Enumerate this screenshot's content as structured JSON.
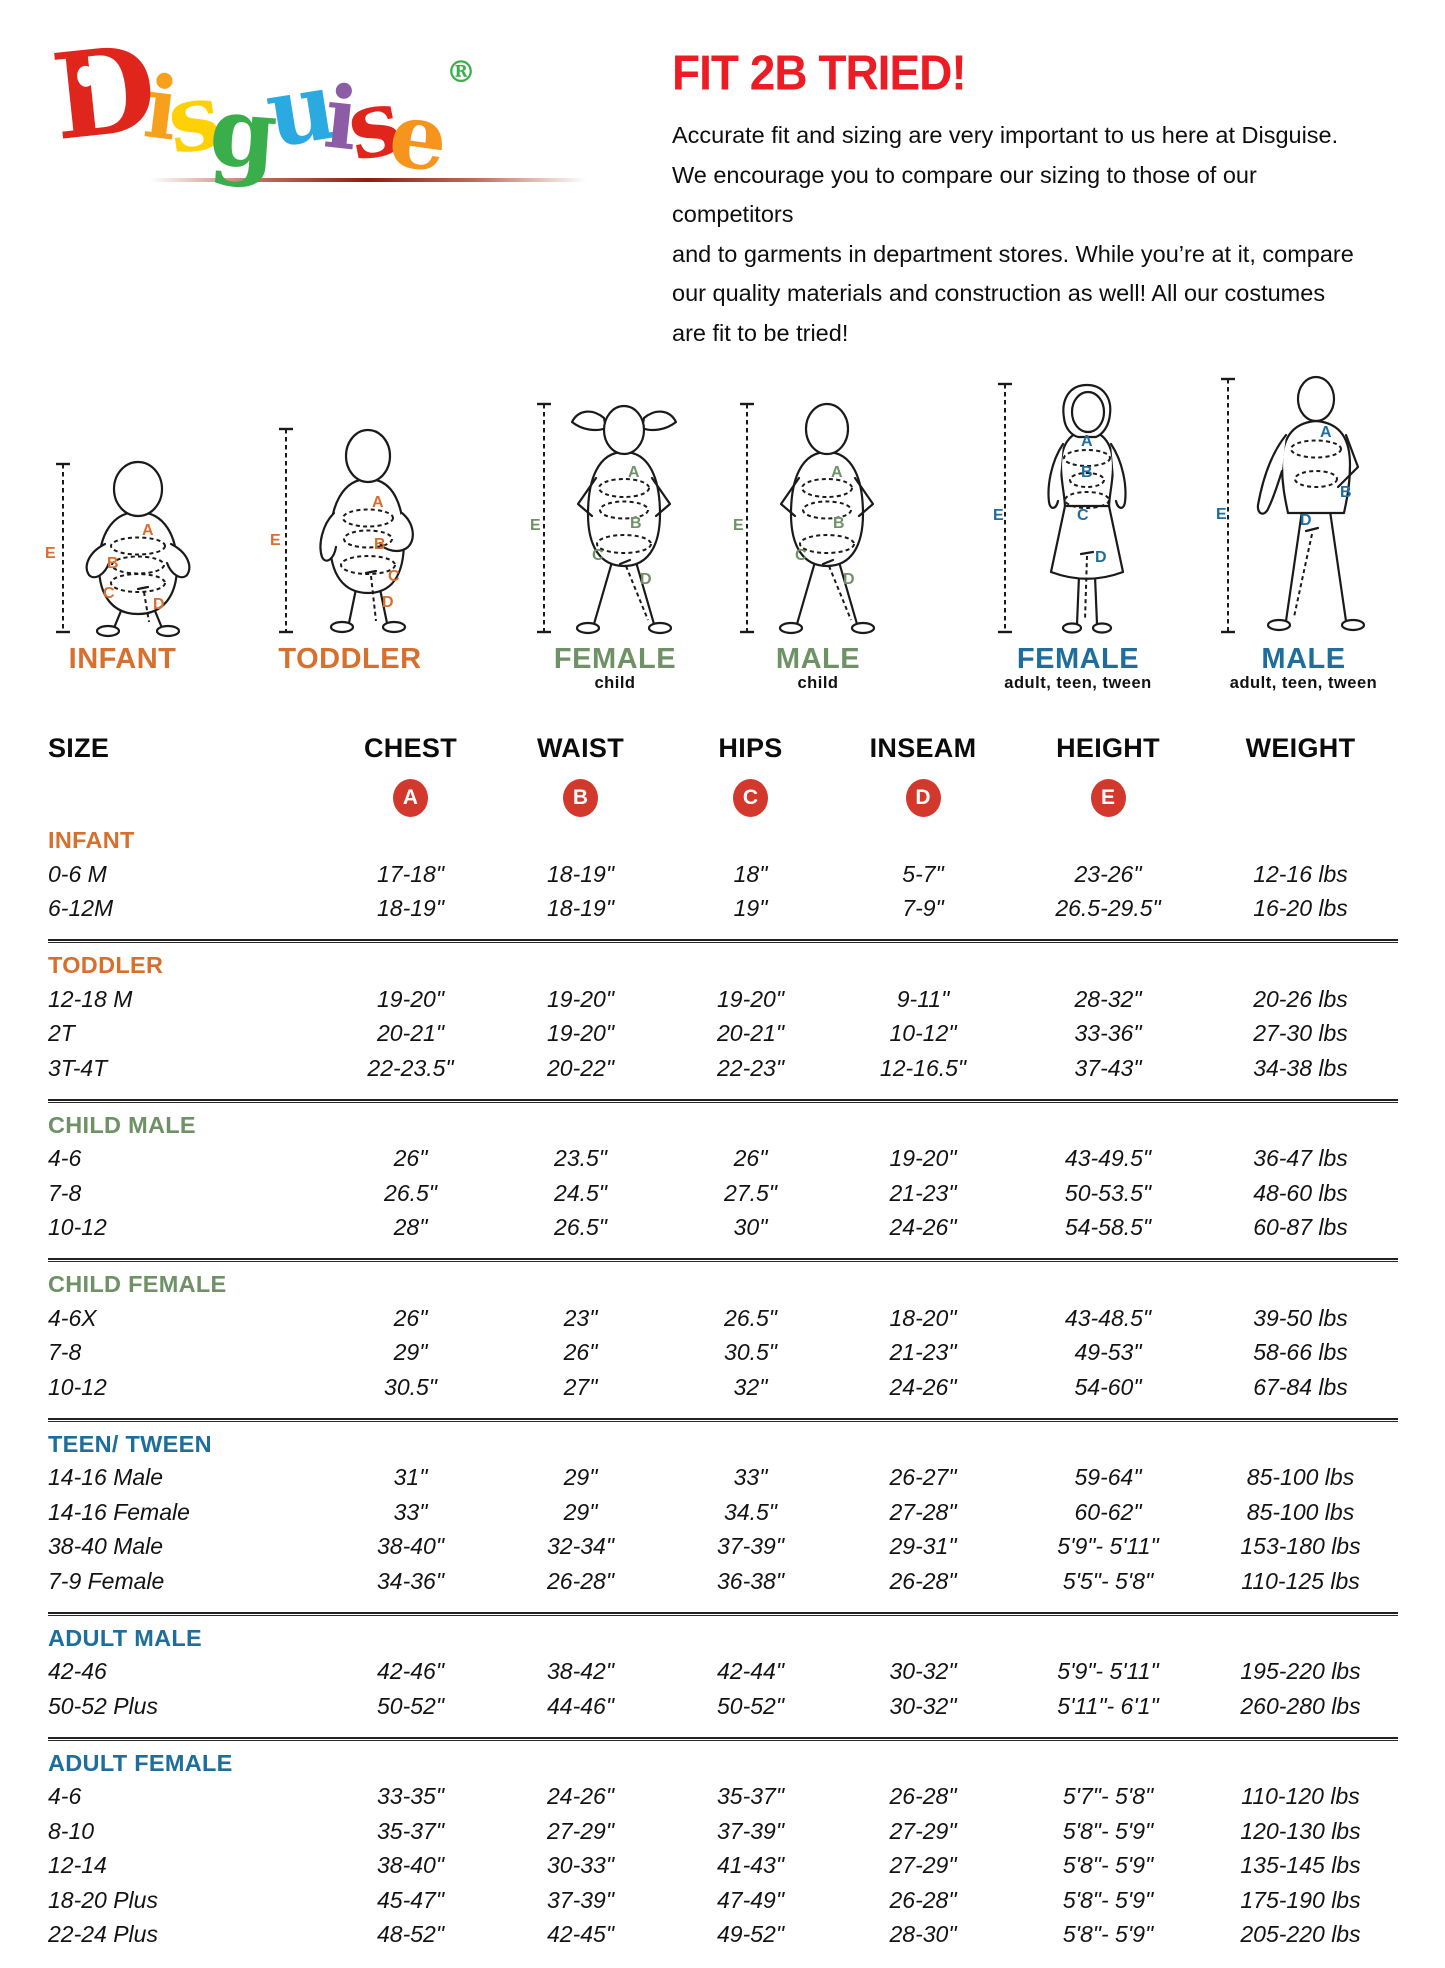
{
  "header": {
    "logo_letters": [
      {
        "ch": "D",
        "color": "#E0251C"
      },
      {
        "ch": "i",
        "color": "#F6A01B"
      },
      {
        "ch": "s",
        "color": "#FFD105"
      },
      {
        "ch": "g",
        "color": "#3BAE4C"
      },
      {
        "ch": "u",
        "color": "#2BAAE2"
      },
      {
        "ch": "i",
        "color": "#8D5CA7"
      },
      {
        "ch": "s",
        "color": "#E0251C"
      },
      {
        "ch": "e",
        "color": "#F7941E"
      }
    ],
    "registered_mark": "®",
    "registered_color": "#3BAE4C",
    "heading": "FIT 2B TRIED!",
    "heading_color": "#EC1C24",
    "paragraph_lines": [
      "Accurate fit and sizing are very important to us here at Disguise.",
      "We encourage you to compare our sizing to those of our competitors",
      "and to garments in department stores. While you’re at it, compare",
      "our quality materials and construction as well! All our costumes",
      "are fit to be tried!"
    ]
  },
  "figures": [
    {
      "label": "INFANT",
      "sublabel": "",
      "color": "#D76F2D",
      "letters": {
        "chest": "A",
        "waist": "B",
        "hips": "C",
        "inseam": "D",
        "height": "E"
      }
    },
    {
      "label": "TODDLER",
      "sublabel": "",
      "color": "#D76F2D",
      "letters": {
        "chest": "A",
        "waist": "B",
        "hips": "C",
        "inseam": "D",
        "height": "E"
      }
    },
    {
      "label": "FEMALE",
      "sublabel": "child",
      "color": "#6E9266",
      "letters": {
        "chest": "A",
        "waist": "B",
        "hips": "C",
        "inseam": "D",
        "height": "E"
      }
    },
    {
      "label": "MALE",
      "sublabel": "child",
      "color": "#6E9266",
      "letters": {
        "chest": "A",
        "waist": "B",
        "hips": "C",
        "inseam": "D",
        "height": "E"
      }
    },
    {
      "label": "FEMALE",
      "sublabel": "adult, teen, tween",
      "color": "#1E6E9D",
      "letters": {
        "chest": "A",
        "waist": "B",
        "hips": "C",
        "inseam": "D",
        "height": "E"
      }
    },
    {
      "label": "MALE",
      "sublabel": "adult, teen, tween",
      "color": "#1E6E9D",
      "letters": {
        "chest": "A",
        "waist": "B",
        "inseam": "D",
        "height": "E"
      }
    }
  ],
  "table": {
    "columns": [
      "SIZE",
      "CHEST",
      "WAIST",
      "HIPS",
      "INSEAM",
      "HEIGHT",
      "WEIGHT"
    ],
    "badges": [
      "A",
      "B",
      "C",
      "D",
      "E"
    ],
    "badge_color": "#D2382C",
    "sections": [
      {
        "name": "INFANT",
        "color": "#D76F2D",
        "rows": [
          [
            "0-6 M",
            "17-18\"",
            "18-19\"",
            "18\"",
            "5-7\"",
            "23-26\"",
            "12-16 lbs"
          ],
          [
            "6-12M",
            "18-19\"",
            "18-19\"",
            "19\"",
            "7-9\"",
            "26.5-29.5\"",
            "16-20 lbs"
          ]
        ]
      },
      {
        "name": "TODDLER",
        "color": "#D76F2D",
        "rows": [
          [
            "12-18 M",
            "19-20\"",
            "19-20\"",
            "19-20\"",
            "9-11\"",
            "28-32\"",
            "20-26 lbs"
          ],
          [
            "2T",
            "20-21\"",
            "19-20\"",
            "20-21\"",
            "10-12\"",
            "33-36\"",
            "27-30 lbs"
          ],
          [
            "3T-4T",
            "22-23.5\"",
            "20-22\"",
            "22-23\"",
            "12-16.5\"",
            "37-43\"",
            "34-38 lbs"
          ]
        ]
      },
      {
        "name": "CHILD MALE",
        "color": "#6E9266",
        "rows": [
          [
            "4-6",
            "26\"",
            "23.5\"",
            "26\"",
            "19-20\"",
            "43-49.5\"",
            "36-47 lbs"
          ],
          [
            "7-8",
            "26.5\"",
            "24.5\"",
            "27.5\"",
            "21-23\"",
            "50-53.5\"",
            "48-60 lbs"
          ],
          [
            "10-12",
            "28\"",
            "26.5\"",
            "30\"",
            "24-26\"",
            "54-58.5\"",
            "60-87 lbs"
          ]
        ]
      },
      {
        "name": "CHILD FEMALE",
        "color": "#6E9266",
        "rows": [
          [
            "4-6X",
            "26\"",
            "23\"",
            "26.5\"",
            "18-20\"",
            "43-48.5\"",
            "39-50 lbs"
          ],
          [
            "7-8",
            "29\"",
            "26\"",
            "30.5\"",
            "21-23\"",
            "49-53\"",
            "58-66 lbs"
          ],
          [
            "10-12",
            "30.5\"",
            "27\"",
            "32\"",
            "24-26\"",
            "54-60\"",
            "67-84 lbs"
          ]
        ]
      },
      {
        "name": "TEEN/ TWEEN",
        "color": "#1E6E9D",
        "rows": [
          [
            "14-16 Male",
            "31\"",
            "29\"",
            "33\"",
            "26-27\"",
            "59-64\"",
            "85-100 lbs"
          ],
          [
            "14-16 Female",
            "33\"",
            "29\"",
            "34.5\"",
            "27-28\"",
            "60-62\"",
            "85-100 lbs"
          ],
          [
            "38-40 Male",
            "38-40\"",
            "32-34\"",
            "37-39\"",
            "29-31\"",
            "5'9\"- 5'11\"",
            "153-180 lbs"
          ],
          [
            "7-9 Female",
            "34-36\"",
            "26-28\"",
            "36-38\"",
            "26-28\"",
            "5'5\"- 5'8\"",
            "110-125 lbs"
          ]
        ]
      },
      {
        "name": "ADULT MALE",
        "color": "#1E6E9D",
        "rows": [
          [
            "42-46",
            "42-46\"",
            "38-42\"",
            "42-44\"",
            "30-32\"",
            "5'9\"- 5'11\"",
            "195-220 lbs"
          ],
          [
            "50-52 Plus",
            "50-52\"",
            "44-46\"",
            "50-52\"",
            "30-32\"",
            "5'11\"- 6'1\"",
            "260-280 lbs"
          ]
        ]
      },
      {
        "name": "ADULT FEMALE",
        "color": "#1E6E9D",
        "rows": [
          [
            "4-6",
            "33-35\"",
            "24-26\"",
            "35-37\"",
            "26-28\"",
            "5'7\"- 5'8\"",
            "110-120 lbs"
          ],
          [
            "8-10",
            "35-37\"",
            "27-29\"",
            "37-39\"",
            "27-29\"",
            "5'8\"- 5'9\"",
            "120-130 lbs"
          ],
          [
            "12-14",
            "38-40\"",
            "30-33\"",
            "41-43\"",
            "27-29\"",
            "5'8\"- 5'9\"",
            "135-145 lbs"
          ],
          [
            "18-20 Plus",
            "45-47\"",
            "37-39\"",
            "47-49\"",
            "26-28\"",
            "5'8\"- 5'9\"",
            "175-190 lbs"
          ],
          [
            "22-24 Plus",
            "48-52\"",
            "42-45\"",
            "49-52\"",
            "28-30\"",
            "5'8\"- 5'9\"",
            "205-220 lbs"
          ]
        ]
      }
    ]
  }
}
